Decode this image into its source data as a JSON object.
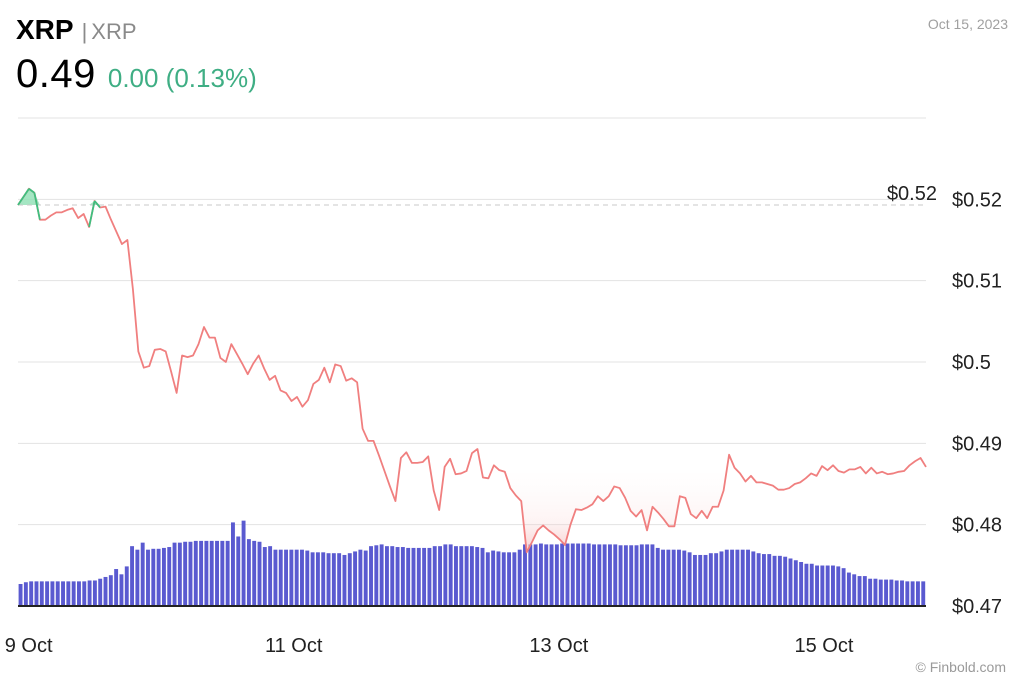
{
  "header": {
    "symbol": "XRP",
    "separator": "|",
    "name": "XRP",
    "price": "0.49",
    "change": "0.00 (0.13%)",
    "date": "Oct 15, 2023"
  },
  "credit": "© Finbold.com",
  "colors": {
    "line": "#f07f7f",
    "fill_down": "#f6c4c4",
    "fill_up": "#8fe0b4",
    "volume": "#5a5ad0",
    "change": "#3fae84"
  },
  "chart_data": {
    "type": "line",
    "reference_label": "$0.52",
    "reference_value": 0.5193,
    "ylim": [
      0.47,
      0.53
    ],
    "y_ticks": [
      {
        "value": 0.52,
        "label": "$0.52"
      },
      {
        "value": 0.51,
        "label": "$0.51"
      },
      {
        "value": 0.5,
        "label": "$0.5"
      },
      {
        "value": 0.49,
        "label": "$0.49"
      },
      {
        "value": 0.48,
        "label": "$0.48"
      },
      {
        "value": 0.47,
        "label": "$0.47"
      }
    ],
    "x_ticks": [
      {
        "t": 0.08,
        "label": "9 Oct"
      },
      {
        "t": 2.08,
        "label": "11 Oct"
      },
      {
        "t": 4.08,
        "label": "13 Oct"
      },
      {
        "t": 6.08,
        "label": "15 Oct"
      }
    ],
    "series": [
      {
        "values": [
          0.5193,
          0.5203,
          0.5213,
          0.5208,
          0.5175,
          0.5175,
          0.518,
          0.5184,
          0.5184,
          0.5187,
          0.5189,
          0.5177,
          0.5182,
          0.5166,
          0.5198,
          0.519,
          0.5191,
          0.5175,
          0.516,
          0.5145,
          0.515,
          0.509,
          0.5013,
          0.4993,
          0.4995,
          0.5015,
          0.5016,
          0.5013,
          0.4988,
          0.4962,
          0.5008,
          0.5006,
          0.5008,
          0.5022,
          0.5043,
          0.503,
          0.503,
          0.5005,
          0.5,
          0.5022,
          0.501,
          0.4998,
          0.4985,
          0.4998,
          0.5008,
          0.4992,
          0.4978,
          0.4983,
          0.4965,
          0.4962,
          0.4952,
          0.4957,
          0.4945,
          0.4953,
          0.4973,
          0.4978,
          0.4993,
          0.4975,
          0.4997,
          0.4995,
          0.4977,
          0.498,
          0.4975,
          0.4918,
          0.4903,
          0.4903,
          0.4885,
          0.4866,
          0.4847,
          0.4829,
          0.4882,
          0.4889,
          0.4876,
          0.4876,
          0.4877,
          0.4884,
          0.4842,
          0.4818,
          0.4871,
          0.4881,
          0.4862,
          0.4863,
          0.4866,
          0.4888,
          0.4893,
          0.4858,
          0.4857,
          0.4873,
          0.4867,
          0.4865,
          0.4845,
          0.4836,
          0.4829,
          0.4766,
          0.4779,
          0.4793,
          0.4799,
          0.4793,
          0.4788,
          0.4782,
          0.4775,
          0.48,
          0.4819,
          0.4818,
          0.4821,
          0.4825,
          0.4835,
          0.4829,
          0.4835,
          0.4847,
          0.4845,
          0.4833,
          0.4817,
          0.481,
          0.4818,
          0.4793,
          0.4822,
          0.4815,
          0.4807,
          0.4798,
          0.4798,
          0.4835,
          0.4833,
          0.4813,
          0.4808,
          0.4817,
          0.4808,
          0.4822,
          0.4822,
          0.4842,
          0.4886,
          0.487,
          0.4863,
          0.4853,
          0.486,
          0.4852,
          0.4852,
          0.485,
          0.4848,
          0.4843,
          0.4843,
          0.4845,
          0.485,
          0.4852,
          0.4857,
          0.4863,
          0.486,
          0.4872,
          0.4867,
          0.4873,
          0.4866,
          0.4864,
          0.4868,
          0.4868,
          0.4871,
          0.4863,
          0.487,
          0.4863,
          0.4865,
          0.4862,
          0.4863,
          0.4865,
          0.4866,
          0.4873,
          0.4878,
          0.4882,
          0.4871
        ]
      }
    ],
    "volume_relative": [
      0.25,
      0.27,
      0.28,
      0.28,
      0.28,
      0.28,
      0.28,
      0.28,
      0.28,
      0.28,
      0.28,
      0.28,
      0.28,
      0.29,
      0.29,
      0.31,
      0.33,
      0.35,
      0.42,
      0.36,
      0.45,
      0.68,
      0.64,
      0.72,
      0.64,
      0.65,
      0.65,
      0.66,
      0.67,
      0.72,
      0.72,
      0.73,
      0.73,
      0.74,
      0.74,
      0.74,
      0.74,
      0.74,
      0.74,
      0.74,
      0.95,
      0.79,
      0.97,
      0.76,
      0.74,
      0.73,
      0.67,
      0.68,
      0.64,
      0.64,
      0.64,
      0.64,
      0.64,
      0.64,
      0.63,
      0.61,
      0.61,
      0.61,
      0.6,
      0.6,
      0.6,
      0.58,
      0.6,
      0.62,
      0.64,
      0.63,
      0.68,
      0.69,
      0.7,
      0.68,
      0.68,
      0.67,
      0.67,
      0.66,
      0.66,
      0.66,
      0.66,
      0.66,
      0.68,
      0.68,
      0.7,
      0.7,
      0.68,
      0.68,
      0.68,
      0.68,
      0.67,
      0.66,
      0.61,
      0.63,
      0.62,
      0.61,
      0.61,
      0.61,
      0.64,
      0.7,
      0.7,
      0.7,
      0.71,
      0.7,
      0.7,
      0.7,
      0.71,
      0.71,
      0.71,
      0.71,
      0.71,
      0.71,
      0.7,
      0.7,
      0.7,
      0.7,
      0.7,
      0.69,
      0.69,
      0.69,
      0.69,
      0.7,
      0.7,
      0.7,
      0.66,
      0.64,
      0.64,
      0.64,
      0.64,
      0.63,
      0.61,
      0.58,
      0.58,
      0.58,
      0.6,
      0.6,
      0.62,
      0.64,
      0.64,
      0.64,
      0.64,
      0.64,
      0.62,
      0.6,
      0.59,
      0.59,
      0.57,
      0.57,
      0.56,
      0.54,
      0.52,
      0.5,
      0.48,
      0.48,
      0.46,
      0.46,
      0.46,
      0.46,
      0.45,
      0.43,
      0.38,
      0.36,
      0.34,
      0.34,
      0.31,
      0.31,
      0.3,
      0.3,
      0.3,
      0.29,
      0.29,
      0.28,
      0.28,
      0.28,
      0.28
    ]
  }
}
